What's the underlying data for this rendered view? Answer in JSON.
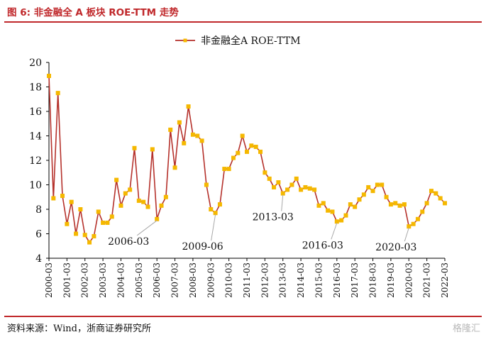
{
  "figure": {
    "title": "图 6: 非金融全 A 板块 ROE-TTM 走势",
    "source": "资料来源：Wind，浙商证券研究所",
    "watermark": "格隆汇"
  },
  "colors": {
    "accent": "#c0282b",
    "line": "#b5312b",
    "marker": "#f5b800"
  },
  "chart_data": {
    "type": "line",
    "title": "",
    "xlabel": "",
    "ylabel": "",
    "ylim": [
      4,
      20
    ],
    "yticks": [
      4,
      6,
      8,
      10,
      12,
      14,
      16,
      18,
      20
    ],
    "legend": "top-center",
    "grid": false,
    "xtick_labels": [
      "2000-03",
      "2001-03",
      "2002-03",
      "2003-03",
      "2004-03",
      "2005-03",
      "2006-03",
      "2007-03",
      "2008-03",
      "2009-03",
      "2010-03",
      "2011-03",
      "2012-03",
      "2013-03",
      "2014-03",
      "2015-03",
      "2016-03",
      "2017-03",
      "2018-03",
      "2019-03",
      "2020-03",
      "2021-03",
      "2022-03"
    ],
    "series": [
      {
        "name": "非金融全A ROE-TTM",
        "x": [
          "2000-03",
          "2000-06",
          "2000-09",
          "2000-12",
          "2001-03",
          "2001-06",
          "2001-09",
          "2001-12",
          "2002-03",
          "2002-06",
          "2002-09",
          "2002-12",
          "2003-03",
          "2003-06",
          "2003-09",
          "2003-12",
          "2004-03",
          "2004-06",
          "2004-09",
          "2004-12",
          "2005-03",
          "2005-06",
          "2005-09",
          "2005-12",
          "2006-03",
          "2006-06",
          "2006-09",
          "2006-12",
          "2007-03",
          "2007-06",
          "2007-09",
          "2007-12",
          "2008-03",
          "2008-06",
          "2008-09",
          "2008-12",
          "2009-03",
          "2009-06",
          "2009-09",
          "2009-12",
          "2010-03",
          "2010-06",
          "2010-09",
          "2010-12",
          "2011-03",
          "2011-06",
          "2011-09",
          "2011-12",
          "2012-03",
          "2012-06",
          "2012-09",
          "2012-12",
          "2013-03",
          "2013-06",
          "2013-09",
          "2013-12",
          "2014-03",
          "2014-06",
          "2014-09",
          "2014-12",
          "2015-03",
          "2015-06",
          "2015-09",
          "2015-12",
          "2016-03",
          "2016-06",
          "2016-09",
          "2016-12",
          "2017-03",
          "2017-06",
          "2017-09",
          "2017-12",
          "2018-03",
          "2018-06",
          "2018-09",
          "2018-12",
          "2019-03",
          "2019-06",
          "2019-09",
          "2019-12",
          "2020-03",
          "2020-06",
          "2020-09",
          "2020-12",
          "2021-03",
          "2021-06",
          "2021-09",
          "2021-12",
          "2022-03"
        ],
        "values": [
          18.9,
          8.9,
          17.5,
          9.1,
          6.8,
          8.6,
          6.0,
          8.0,
          5.9,
          5.3,
          5.8,
          7.8,
          6.9,
          6.9,
          7.4,
          10.4,
          8.3,
          9.3,
          9.6,
          13.0,
          8.7,
          8.6,
          8.2,
          12.9,
          7.2,
          8.3,
          9.0,
          14.5,
          11.4,
          15.1,
          13.4,
          16.4,
          14.1,
          14.0,
          13.6,
          10.0,
          8.0,
          7.7,
          8.4,
          11.3,
          11.3,
          12.2,
          12.6,
          14.0,
          12.7,
          13.2,
          13.1,
          12.7,
          11.0,
          10.5,
          9.8,
          10.2,
          9.3,
          9.6,
          10.0,
          10.5,
          9.6,
          9.8,
          9.7,
          9.6,
          8.3,
          8.5,
          7.9,
          7.8,
          7.0,
          7.1,
          7.5,
          8.4,
          8.2,
          8.8,
          9.2,
          9.8,
          9.5,
          10.0,
          10.0,
          9.0,
          8.4,
          8.5,
          8.3,
          8.4,
          6.6,
          6.8,
          7.2,
          7.8,
          8.5,
          9.5,
          9.3,
          8.9,
          8.5
        ]
      }
    ],
    "annotations": [
      {
        "label": "2006-03",
        "at": "2006-03"
      },
      {
        "label": "2009-06",
        "at": "2009-06"
      },
      {
        "label": "2013-03",
        "at": "2013-03"
      },
      {
        "label": "2016-03",
        "at": "2016-03"
      },
      {
        "label": "2020-03",
        "at": "2020-03"
      }
    ]
  }
}
